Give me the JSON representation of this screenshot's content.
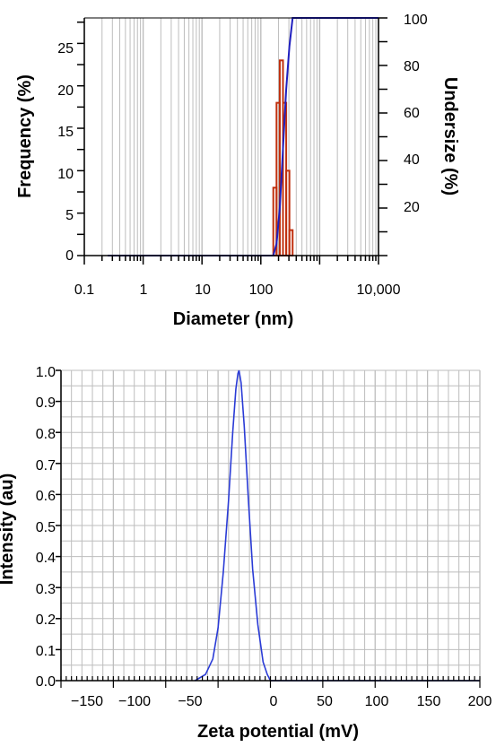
{
  "colors": {
    "grid": "#bdbdbd",
    "axis": "#000000",
    "bars": "#c0300e",
    "cumulative_line": "#1f1fbf",
    "zeta_line": "#2a3bd6"
  },
  "chart_data": [
    {
      "type": "bar",
      "subtype": "size-distribution-histogram-with-cumulative-line",
      "xlabel": "Diameter (nm)",
      "ylabel_left": "Frequency (%)",
      "ylabel_right": "Undersize (%)",
      "xscale": "log",
      "xlim": [
        0.1,
        10000
      ],
      "ylim_left": [
        0,
        28
      ],
      "ylim_right": [
        0,
        100
      ],
      "x_tick_labels": [
        "0.1",
        "1",
        "10",
        "100",
        "10,000"
      ],
      "x_tick_values": [
        0.1,
        1,
        10,
        100,
        10000
      ],
      "y_left_ticks": [
        "0",
        "5",
        "10",
        "15",
        "20",
        "25"
      ],
      "y_right_ticks": [
        "20",
        "40",
        "60",
        "80",
        "100"
      ],
      "grid": true,
      "histogram": [
        {
          "x_left": 163,
          "x_right": 185,
          "value": 8
        },
        {
          "x_left": 185,
          "x_right": 210,
          "value": 18
        },
        {
          "x_left": 210,
          "x_right": 238,
          "value": 23
        },
        {
          "x_left": 238,
          "x_right": 270,
          "value": 18
        },
        {
          "x_left": 270,
          "x_right": 306,
          "value": 10
        },
        {
          "x_left": 306,
          "x_right": 347,
          "value": 3
        }
      ],
      "cumulative": {
        "x": [
          0.25,
          150,
          163,
          185,
          210,
          238,
          270,
          306,
          347,
          1000,
          10000
        ],
        "y": [
          0,
          0,
          0,
          5,
          20,
          45,
          70,
          88,
          100,
          100,
          100
        ]
      }
    },
    {
      "type": "line",
      "xlabel": "Zeta potential (mV)",
      "ylabel": "Intensity (au)",
      "xlim": [
        -200,
        200
      ],
      "ylim": [
        0,
        1.0
      ],
      "x_ticks": [
        "−150",
        "−100",
        "−50",
        "0",
        "50",
        "100",
        "150",
        "200"
      ],
      "x_tick_values": [
        -150,
        -100,
        -50,
        0,
        50,
        100,
        150,
        200
      ],
      "y_ticks": [
        "0.0",
        "0.1",
        "0.2",
        "0.3",
        "0.4",
        "0.5",
        "0.6",
        "0.7",
        "0.8",
        "0.9",
        "1.0"
      ],
      "y_tick_values": [
        0.0,
        0.1,
        0.2,
        0.3,
        0.4,
        0.5,
        0.6,
        0.7,
        0.8,
        0.9,
        1.0
      ],
      "grid": true,
      "series": [
        {
          "x": [
            -72,
            -62,
            -55,
            -50,
            -45,
            -40,
            -36,
            -33,
            -31,
            -30,
            -28,
            -25,
            -21,
            -17,
            -12,
            -7,
            -3,
            0,
            5,
            200
          ],
          "y": [
            0.0,
            0.02,
            0.07,
            0.17,
            0.35,
            0.58,
            0.8,
            0.94,
            0.99,
            1.0,
            0.96,
            0.82,
            0.58,
            0.36,
            0.18,
            0.06,
            0.02,
            0.0,
            0.0,
            0.0
          ]
        }
      ]
    }
  ]
}
